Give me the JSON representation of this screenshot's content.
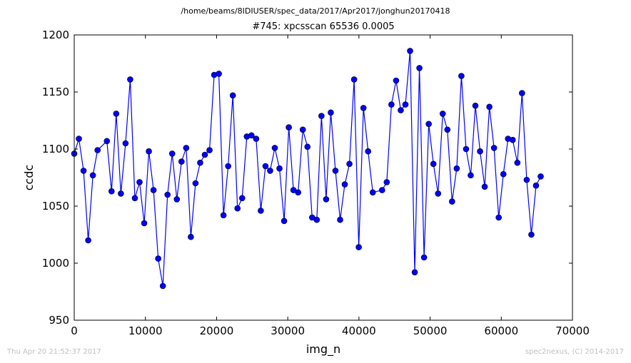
{
  "figure": {
    "suptitle": "/home/beams/8IDIUSER/spec_data/2017/Apr2017/jonghun20170418",
    "footer_left": "Thu Apr 20 21:52:37 2017",
    "footer_right": "spec2nexus, (C) 2014-2017"
  },
  "chart_data": {
    "type": "line",
    "title": "#745: xpcsscan 65536 0.0005",
    "xlabel": "img_n",
    "ylabel": "ccdc",
    "xlim": [
      0,
      70000
    ],
    "ylim": [
      950,
      1200
    ],
    "xticks": [
      0,
      10000,
      20000,
      30000,
      40000,
      50000,
      60000,
      70000
    ],
    "yticks": [
      950,
      1000,
      1050,
      1100,
      1150,
      1200
    ],
    "grid": false,
    "marker": "circle",
    "line_color": "#0000ff",
    "marker_color": "#0000ff",
    "series": [
      {
        "x": [
          0,
          655,
          1311,
          1966,
          2621,
          3277,
          4587,
          5243,
          5898,
          6554,
          7209,
          7864,
          8520,
          9175,
          9830,
          10486,
          11141,
          11796,
          12452,
          13107,
          13763,
          14418,
          15073,
          15729,
          16384,
          17039,
          17695,
          18350,
          19005,
          19661,
          20316,
          20972,
          21627,
          22282,
          22938,
          23593,
          24248,
          24904,
          25559,
          26214,
          26870,
          27525,
          28180,
          28836,
          29491,
          30147,
          30802,
          31457,
          32113,
          32768,
          33423,
          34079,
          34734,
          35389,
          36045,
          36700,
          37356,
          38011,
          38666,
          39322,
          39977,
          40632,
          41288,
          41943,
          43254,
          43909,
          44564,
          45220,
          45875,
          46531,
          47186,
          47841,
          48497,
          49152,
          49807,
          50463,
          51118,
          51773,
          52429,
          53084,
          53740,
          54395,
          55050,
          55706,
          56361,
          57016,
          57672,
          58327,
          58982,
          59638,
          60293,
          60948,
          61604,
          62259,
          62915,
          63570,
          64225,
          64881,
          65536
        ],
        "y": [
          1096,
          1109,
          1081,
          1020,
          1077,
          1099,
          1107,
          1063,
          1131,
          1061,
          1105,
          1161,
          1057,
          1071,
          1035,
          1098,
          1064,
          1004,
          980,
          1060,
          1096,
          1056,
          1089,
          1101,
          1023,
          1070,
          1088,
          1095,
          1099,
          1165,
          1166,
          1042,
          1085,
          1147,
          1048,
          1057,
          1111,
          1112,
          1109,
          1046,
          1085,
          1081,
          1101,
          1083,
          1037,
          1119,
          1064,
          1062,
          1117,
          1102,
          1040,
          1038,
          1129,
          1056,
          1132,
          1081,
          1038,
          1069,
          1087,
          1161,
          1014,
          1136,
          1098,
          1062,
          1064,
          1071,
          1139,
          1160,
          1134,
          1139,
          1186,
          992,
          1171,
          1005,
          1122,
          1087,
          1061,
          1131,
          1117,
          1054,
          1083,
          1164,
          1100,
          1077,
          1138,
          1098,
          1067,
          1137,
          1101,
          1040,
          1078,
          1109,
          1108,
          1088,
          1149,
          1073,
          1025,
          1068,
          1076
        ]
      }
    ]
  }
}
